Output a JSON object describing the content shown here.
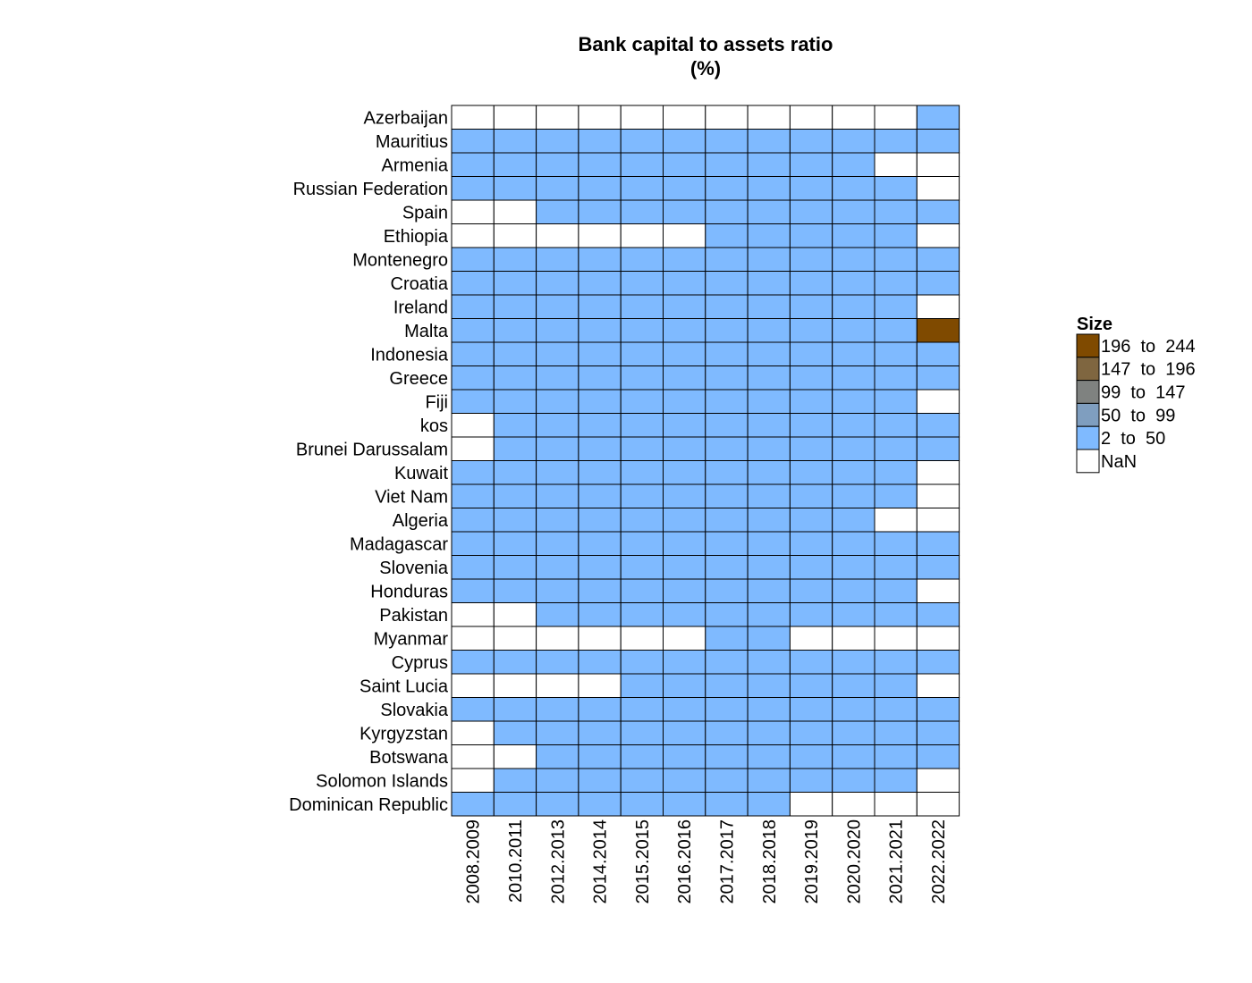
{
  "chart_data": {
    "type": "heatmap",
    "title": "Bank capital to assets ratio",
    "subtitle": "(%)",
    "columns": [
      "2008.2009",
      "2010.2011",
      "2012.2013",
      "2014.2014",
      "2015.2015",
      "2016.2016",
      "2017.2017",
      "2018.2018",
      "2019.2019",
      "2020.2020",
      "2021.2021",
      "2022.2022"
    ],
    "rows": [
      "Azerbaijan",
      "Mauritius",
      "Armenia",
      "Russian Federation",
      "Spain",
      "Ethiopia",
      "Montenegro",
      "Croatia",
      "Ireland",
      "Malta",
      "Indonesia",
      "Greece",
      "Fiji",
      "kos",
      "Brunei Darussalam",
      "Kuwait",
      "Viet Nam",
      "Algeria",
      "Madagascar",
      "Slovenia",
      "Honduras",
      "Pakistan",
      "Myanmar",
      "Cyprus",
      "Saint Lucia",
      "Slovakia",
      "Kyrgyzstan",
      "Botswana",
      "Solomon Islands",
      "Dominican Republic"
    ],
    "cells": [
      [
        0,
        0,
        0,
        0,
        0,
        0,
        0,
        0,
        0,
        0,
        0,
        1
      ],
      [
        1,
        1,
        1,
        1,
        1,
        1,
        1,
        1,
        1,
        1,
        1,
        1
      ],
      [
        1,
        1,
        1,
        1,
        1,
        1,
        1,
        1,
        1,
        1,
        0,
        0
      ],
      [
        1,
        1,
        1,
        1,
        1,
        1,
        1,
        1,
        1,
        1,
        1,
        0
      ],
      [
        0,
        0,
        1,
        1,
        1,
        1,
        1,
        1,
        1,
        1,
        1,
        1
      ],
      [
        0,
        0,
        0,
        0,
        0,
        0,
        1,
        1,
        1,
        1,
        1,
        0
      ],
      [
        1,
        1,
        1,
        1,
        1,
        1,
        1,
        1,
        1,
        1,
        1,
        1
      ],
      [
        1,
        1,
        1,
        1,
        1,
        1,
        1,
        1,
        1,
        1,
        1,
        1
      ],
      [
        1,
        1,
        1,
        1,
        1,
        1,
        1,
        1,
        1,
        1,
        1,
        0
      ],
      [
        1,
        1,
        1,
        1,
        1,
        1,
        1,
        1,
        1,
        1,
        1,
        5
      ],
      [
        1,
        1,
        1,
        1,
        1,
        1,
        1,
        1,
        1,
        1,
        1,
        1
      ],
      [
        1,
        1,
        1,
        1,
        1,
        1,
        1,
        1,
        1,
        1,
        1,
        1
      ],
      [
        1,
        1,
        1,
        1,
        1,
        1,
        1,
        1,
        1,
        1,
        1,
        0
      ],
      [
        0,
        1,
        1,
        1,
        1,
        1,
        1,
        1,
        1,
        1,
        1,
        1
      ],
      [
        0,
        1,
        1,
        1,
        1,
        1,
        1,
        1,
        1,
        1,
        1,
        1
      ],
      [
        1,
        1,
        1,
        1,
        1,
        1,
        1,
        1,
        1,
        1,
        1,
        0
      ],
      [
        1,
        1,
        1,
        1,
        1,
        1,
        1,
        1,
        1,
        1,
        1,
        0
      ],
      [
        1,
        1,
        1,
        1,
        1,
        1,
        1,
        1,
        1,
        1,
        0,
        0
      ],
      [
        1,
        1,
        1,
        1,
        1,
        1,
        1,
        1,
        1,
        1,
        1,
        1
      ],
      [
        1,
        1,
        1,
        1,
        1,
        1,
        1,
        1,
        1,
        1,
        1,
        1
      ],
      [
        1,
        1,
        1,
        1,
        1,
        1,
        1,
        1,
        1,
        1,
        1,
        0
      ],
      [
        0,
        0,
        1,
        1,
        1,
        1,
        1,
        1,
        1,
        1,
        1,
        1
      ],
      [
        0,
        0,
        0,
        0,
        0,
        0,
        1,
        1,
        0,
        0,
        0,
        0
      ],
      [
        1,
        1,
        1,
        1,
        1,
        1,
        1,
        1,
        1,
        1,
        1,
        1
      ],
      [
        0,
        0,
        0,
        0,
        1,
        1,
        1,
        1,
        1,
        1,
        1,
        0
      ],
      [
        1,
        1,
        1,
        1,
        1,
        1,
        1,
        1,
        1,
        1,
        1,
        1
      ],
      [
        0,
        1,
        1,
        1,
        1,
        1,
        1,
        1,
        1,
        1,
        1,
        1
      ],
      [
        0,
        0,
        1,
        1,
        1,
        1,
        1,
        1,
        1,
        1,
        1,
        1
      ],
      [
        0,
        1,
        1,
        1,
        1,
        1,
        1,
        1,
        1,
        1,
        1,
        0
      ],
      [
        1,
        1,
        1,
        1,
        1,
        1,
        1,
        1,
        0,
        0,
        0,
        0
      ]
    ],
    "legend": {
      "title": "Size",
      "position": "right",
      "entries": [
        {
          "label": "196  to  244",
          "color": "#7f4a00"
        },
        {
          "label": "147  to  196",
          "color": "#7f6640"
        },
        {
          "label": "99  to  147",
          "color": "#7f8280"
        },
        {
          "label": "50  to  99",
          "color": "#7f9ebf"
        },
        {
          "label": "2  to  50",
          "color": "#7fbaff"
        },
        {
          "label": "NaN",
          "color": "#ffffff"
        }
      ]
    },
    "category_colors": [
      "#ffffff",
      "#7fbaff",
      "#7f9ebf",
      "#7f8280",
      "#7f6640",
      "#7f4a00"
    ],
    "grid": true
  }
}
